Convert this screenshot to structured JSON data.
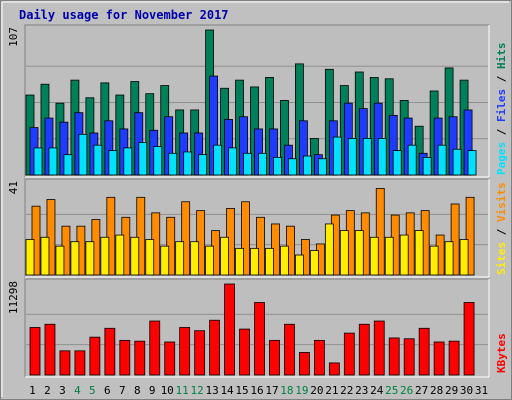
{
  "colors": {
    "background": "#c0c0c0",
    "plot_bg": "#bebebe",
    "title": "#0000aa",
    "hits": "#00805a",
    "files": "#1e3cff",
    "pages": "#00e0ff",
    "visits": "#ff8c00",
    "sites": "#ffee00",
    "kbytes": "#ff0000",
    "weekend_day": "#008040",
    "weekday": "#000000"
  },
  "chart_data": {
    "type": "bar",
    "title": "Daily usage for November 2017",
    "days": [
      "1",
      "2",
      "3",
      "4",
      "5",
      "6",
      "7",
      "8",
      "9",
      "10",
      "11",
      "12",
      "13",
      "14",
      "15",
      "16",
      "17",
      "18",
      "19",
      "20",
      "21",
      "22",
      "23",
      "24",
      "25",
      "26",
      "27",
      "28",
      "29",
      "30",
      "31"
    ],
    "weekend_days": [
      "4",
      "5",
      "11",
      "12",
      "18",
      "19",
      "25",
      "26"
    ],
    "panels": [
      {
        "name": "hits-files-pages",
        "axis_max_label": "107",
        "ymax": 107,
        "legend": [
          "Pages",
          " / ",
          "Files",
          " / ",
          "Hits"
        ],
        "series": [
          {
            "name": "Hits",
            "values": [
              59,
              67,
              53,
              70,
              57,
              68,
              59,
              69,
              60,
              66,
              48,
              48,
              107,
              64,
              70,
              65,
              72,
              55,
              82,
              27,
              78,
              66,
              76,
              72,
              71,
              55,
              36,
              62,
              79,
              70,
              0
            ]
          },
          {
            "name": "Files",
            "values": [
              35,
              42,
              39,
              46,
              31,
              40,
              34,
              46,
              33,
              43,
              31,
              31,
              73,
              41,
              43,
              34,
              34,
              22,
              40,
              15,
              40,
              53,
              49,
              53,
              44,
              42,
              16,
              42,
              43,
              48,
              0
            ]
          },
          {
            "name": "Pages",
            "values": [
              20,
              20,
              15,
              30,
              22,
              18,
              20,
              24,
              21,
              16,
              17,
              15,
              22,
              20,
              16,
              16,
              13,
              12,
              14,
              12,
              28,
              27,
              27,
              27,
              18,
              22,
              13,
              22,
              19,
              18,
              0
            ]
          }
        ]
      },
      {
        "name": "visits-sites",
        "axis_max_label": "41",
        "ymax": 41,
        "legend": [
          "Sites",
          " / ",
          "Visits"
        ],
        "series": [
          {
            "name": "Visits",
            "values": [
              31,
              34,
              22,
              22,
              25,
              35,
              26,
              35,
              28,
              26,
              33,
              29,
              20,
              30,
              33,
              26,
              23,
              22,
              16,
              14,
              27,
              29,
              28,
              39,
              27,
              28,
              29,
              18,
              32,
              35,
              0
            ]
          },
          {
            "name": "Sites",
            "values": [
              16,
              17,
              13,
              15,
              15,
              17,
              18,
              17,
              16,
              13,
              15,
              15,
              13,
              17,
              12,
              12,
              12,
              13,
              9,
              11,
              23,
              20,
              20,
              17,
              17,
              18,
              20,
              13,
              15,
              16,
              0
            ]
          }
        ]
      },
      {
        "name": "kbytes",
        "axis_max_label": "11298",
        "ymax": 11298,
        "legend": [
          "KBytes"
        ],
        "series": [
          {
            "name": "KBytes",
            "values": [
              5900,
              6300,
              3000,
              3000,
              4700,
              5800,
              4300,
              4200,
              6700,
              4100,
              5900,
              5500,
              6800,
              11298,
              5700,
              9000,
              4300,
              6300,
              2800,
              4300,
              1500,
              5200,
              6300,
              6700,
              4600,
              4500,
              5800,
              4100,
              4200,
              9000,
              0
            ]
          }
        ]
      }
    ]
  }
}
